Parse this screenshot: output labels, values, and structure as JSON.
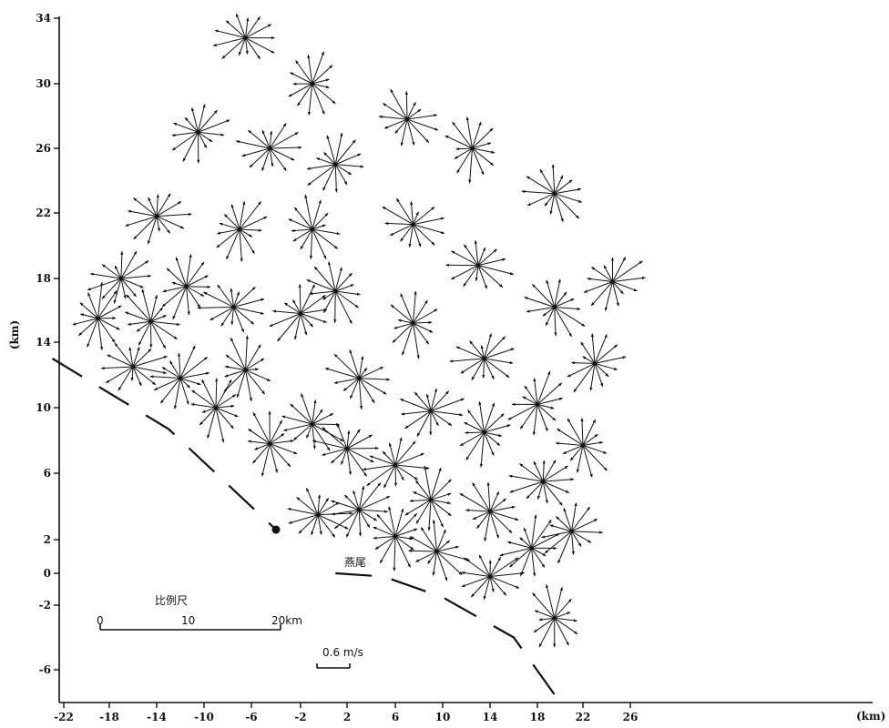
{
  "chart_data": {
    "type": "vector-field",
    "xlabel": "(km)",
    "ylabel": "(km)",
    "x_ticks": [
      -22,
      -18,
      -14,
      -10,
      -6,
      -2,
      2,
      6,
      10,
      14,
      18,
      22,
      26
    ],
    "y_ticks": [
      34,
      30,
      26,
      22,
      18,
      14,
      10,
      6,
      2,
      0,
      -2,
      -6
    ],
    "xlim": [
      -22,
      27
    ],
    "ylim": [
      -8,
      35
    ],
    "location_label": "燕尾",
    "location_point": [
      -4,
      2.6
    ],
    "scale_bar": {
      "title": "比例尺",
      "labels": [
        "0",
        "10",
        "20km"
      ]
    },
    "velocity_scale": {
      "label": "0.6 m/s"
    },
    "coast_line": [
      [
        -23,
        13
      ],
      [
        -13,
        8.7
      ],
      [
        -4,
        2.6
      ]
    ],
    "channel_line": [
      [
        1,
        0
      ],
      [
        5,
        -0.2
      ],
      [
        10,
        -1.5
      ],
      [
        16,
        -4
      ],
      [
        20,
        -8
      ]
    ],
    "stations": [
      [
        -6.5,
        32.8
      ],
      [
        -10.5,
        27
      ],
      [
        -1,
        30
      ],
      [
        7,
        27.8
      ],
      [
        -4.5,
        26
      ],
      [
        1,
        25
      ],
      [
        12.5,
        26
      ],
      [
        19.5,
        23.2
      ],
      [
        -14,
        21.8
      ],
      [
        -7,
        21
      ],
      [
        -1,
        21
      ],
      [
        7.5,
        21.3
      ],
      [
        -17,
        18
      ],
      [
        -11.5,
        17.5
      ],
      [
        1,
        17.2
      ],
      [
        13,
        18.8
      ],
      [
        24.5,
        17.8
      ],
      [
        -19,
        15.5
      ],
      [
        -14.5,
        15.3
      ],
      [
        -7.5,
        16.2
      ],
      [
        -2,
        15.8
      ],
      [
        7.5,
        15.2
      ],
      [
        19.5,
        16.2
      ],
      [
        -16,
        12.5
      ],
      [
        -12,
        11.8
      ],
      [
        -6.5,
        12.3
      ],
      [
        3,
        11.8
      ],
      [
        13.5,
        13
      ],
      [
        23,
        12.7
      ],
      [
        -9,
        10
      ],
      [
        -1,
        9
      ],
      [
        9,
        9.8
      ],
      [
        18,
        10.2
      ],
      [
        -4.5,
        7.8
      ],
      [
        2,
        7.5
      ],
      [
        6,
        6.5
      ],
      [
        13.5,
        8.5
      ],
      [
        22,
        7.7
      ],
      [
        -0.5,
        3.5
      ],
      [
        3,
        3.8
      ],
      [
        9,
        4.4
      ],
      [
        14,
        3.7
      ],
      [
        18.5,
        5.5
      ],
      [
        21,
        2.5
      ],
      [
        6,
        2.2
      ],
      [
        9.5,
        1.3
      ],
      [
        14,
        -0.2
      ],
      [
        17.5,
        1.5
      ],
      [
        19.5,
        -2.8
      ]
    ]
  }
}
